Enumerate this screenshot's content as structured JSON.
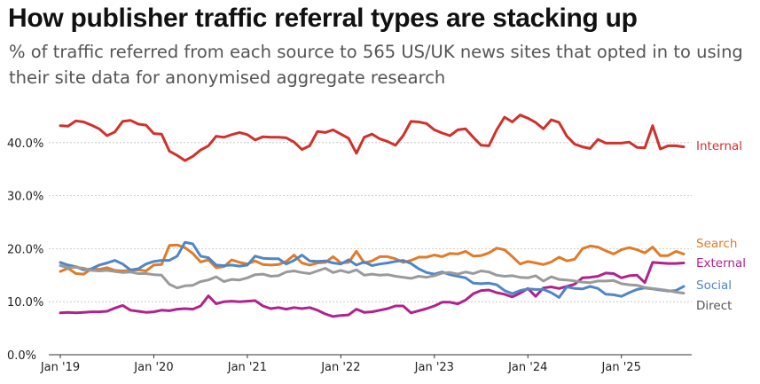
{
  "page": {
    "title": "How publisher traffic referral types are stacking up",
    "subtitle": "% of traffic referred from each source to 565 US/UK news sites that opted in to using their site data for anonymised aggregate research"
  },
  "chart_data": {
    "type": "line",
    "title": "How publisher traffic referral types are stacking up",
    "subtitle": "% of traffic referred from each source to 565 US/UK news sites that opted in to using their site data for anonymised aggregate research",
    "xlabel": "",
    "ylabel": "",
    "x_start": "2019-01",
    "x_frequency": "monthly",
    "x_tick_labels": [
      "Jan '19",
      "Jan '20",
      "Jan '21",
      "Jan '22",
      "Jan '23",
      "Jan '24",
      "Jan '25"
    ],
    "y_ticks": [
      0,
      10,
      20,
      30,
      40
    ],
    "y_tick_labels": [
      "0.0%",
      "10.0%",
      "20.0%",
      "30.0%",
      "40.0%"
    ],
    "ylim": [
      0,
      45
    ],
    "grid": true,
    "legend": "direct labels at line ends (right)",
    "series": [
      {
        "name": "Internal",
        "color": "#d0312d",
        "values": [
          43.2,
          43.1,
          44.1,
          43.9,
          43.3,
          42.6,
          41.3,
          42.0,
          44.0,
          44.2,
          43.5,
          43.3,
          41.7,
          41.6,
          38.4,
          37.6,
          36.6,
          37.4,
          38.6,
          39.4,
          41.2,
          41.0,
          41.5,
          41.9,
          41.5,
          40.5,
          41.1,
          41.0,
          41.0,
          40.9,
          40.1,
          38.7,
          39.4,
          42.1,
          41.9,
          42.4,
          41.6,
          40.8,
          38.0,
          41.0,
          41.6,
          40.7,
          40.2,
          39.5,
          41.3,
          44.0,
          43.9,
          43.6,
          42.4,
          41.8,
          41.3,
          42.4,
          42.6,
          41.0,
          39.5,
          39.4,
          42.4,
          44.8,
          43.9,
          45.2,
          44.6,
          43.8,
          42.6,
          44.3,
          43.8,
          41.2,
          39.7,
          39.2,
          38.9,
          40.6,
          39.9,
          39.9,
          39.9,
          40.1,
          39.1,
          39.0,
          43.2,
          38.8,
          39.4,
          39.4,
          39.2
        ]
      },
      {
        "name": "Search",
        "color": "#e07b2a",
        "values": [
          15.7,
          16.3,
          15.3,
          15.2,
          16.2,
          16.1,
          16.4,
          15.9,
          15.8,
          15.9,
          16.0,
          15.8,
          16.9,
          17.0,
          20.6,
          20.7,
          20.2,
          19.1,
          17.5,
          17.9,
          16.4,
          16.6,
          17.9,
          17.4,
          17.1,
          17.7,
          17.0,
          16.9,
          17.0,
          17.6,
          18.8,
          17.3,
          16.9,
          17.3,
          17.4,
          18.5,
          17.3,
          17.4,
          19.5,
          17.3,
          17.7,
          18.5,
          18.5,
          18.1,
          17.4,
          17.8,
          18.4,
          18.4,
          18.8,
          18.5,
          19.1,
          19.0,
          19.5,
          18.6,
          18.7,
          19.2,
          20.1,
          19.8,
          18.5,
          17.1,
          17.6,
          17.3,
          17.0,
          17.5,
          18.4,
          17.7,
          18.0,
          20.0,
          20.5,
          20.3,
          19.6,
          19.0,
          19.8,
          20.2,
          19.8,
          19.2,
          20.3,
          18.7,
          18.7,
          19.5,
          19.0
        ]
      },
      {
        "name": "External",
        "color": "#b0238d",
        "values": [
          7.9,
          8.0,
          7.9,
          8.0,
          8.1,
          8.1,
          8.2,
          8.8,
          9.3,
          8.4,
          8.2,
          8.0,
          8.1,
          8.4,
          8.3,
          8.6,
          8.7,
          8.6,
          9.2,
          11.1,
          9.6,
          10.0,
          10.1,
          10.0,
          10.1,
          10.2,
          9.2,
          8.7,
          8.9,
          8.6,
          8.9,
          8.7,
          8.9,
          8.4,
          7.7,
          7.2,
          7.4,
          7.5,
          8.6,
          8.0,
          8.1,
          8.4,
          8.7,
          9.2,
          9.2,
          7.9,
          8.3,
          8.7,
          9.2,
          9.9,
          9.9,
          9.6,
          10.3,
          11.5,
          12.1,
          12.2,
          11.7,
          11.4,
          10.9,
          11.6,
          12.5,
          11.0,
          12.6,
          12.8,
          12.5,
          12.9,
          13.3,
          14.5,
          14.6,
          14.8,
          15.4,
          15.3,
          14.5,
          14.9,
          15.0,
          13.6,
          17.4,
          17.3,
          17.2,
          17.2,
          17.3
        ]
      },
      {
        "name": "Social",
        "color": "#4f86c6",
        "values": [
          17.4,
          16.9,
          16.6,
          16.0,
          16.2,
          16.9,
          17.3,
          17.8,
          17.1,
          16.0,
          16.2,
          17.1,
          17.6,
          17.8,
          17.8,
          18.6,
          21.2,
          20.9,
          18.6,
          18.3,
          16.9,
          16.8,
          16.9,
          16.7,
          16.9,
          18.6,
          18.2,
          18.1,
          18.1,
          17.1,
          17.8,
          18.8,
          17.7,
          17.6,
          17.7,
          17.3,
          17.1,
          17.9,
          16.9,
          17.5,
          16.8,
          17.1,
          17.3,
          17.6,
          17.8,
          17.2,
          16.2,
          15.5,
          15.2,
          15.6,
          15.1,
          14.8,
          14.5,
          13.5,
          13.4,
          13.5,
          13.2,
          12.1,
          11.5,
          12.1,
          12.4,
          12.3,
          12.3,
          11.7,
          10.8,
          12.8,
          12.5,
          12.4,
          12.9,
          12.5,
          11.4,
          11.3,
          11.0,
          11.7,
          12.3,
          12.6,
          12.4,
          12.2,
          12.0,
          12.1,
          12.9
        ]
      },
      {
        "name": "Direct",
        "color": "#9a9a9a",
        "values": [
          16.8,
          16.4,
          16.5,
          16.3,
          15.9,
          15.8,
          15.9,
          15.7,
          15.5,
          15.6,
          15.3,
          15.3,
          15.1,
          15.0,
          13.3,
          12.6,
          13.0,
          13.1,
          13.8,
          14.1,
          14.7,
          13.8,
          14.2,
          14.1,
          14.5,
          15.1,
          15.2,
          14.8,
          14.9,
          15.6,
          15.8,
          15.5,
          15.3,
          15.8,
          16.3,
          15.5,
          15.9,
          15.5,
          16.0,
          15.0,
          15.2,
          15.0,
          15.1,
          14.8,
          14.6,
          14.4,
          14.8,
          14.6,
          14.9,
          15.4,
          15.5,
          15.2,
          15.6,
          15.3,
          15.8,
          15.6,
          15.0,
          14.8,
          14.9,
          14.6,
          14.5,
          14.9,
          13.9,
          14.7,
          14.2,
          14.1,
          13.9,
          13.7,
          13.6,
          13.9,
          13.9,
          14.0,
          13.4,
          13.2,
          13.1,
          12.7,
          12.5,
          12.3,
          12.1,
          11.8,
          11.6
        ]
      }
    ],
    "end_labels": [
      "Internal",
      "Search",
      "External",
      "Social",
      "Direct"
    ]
  }
}
